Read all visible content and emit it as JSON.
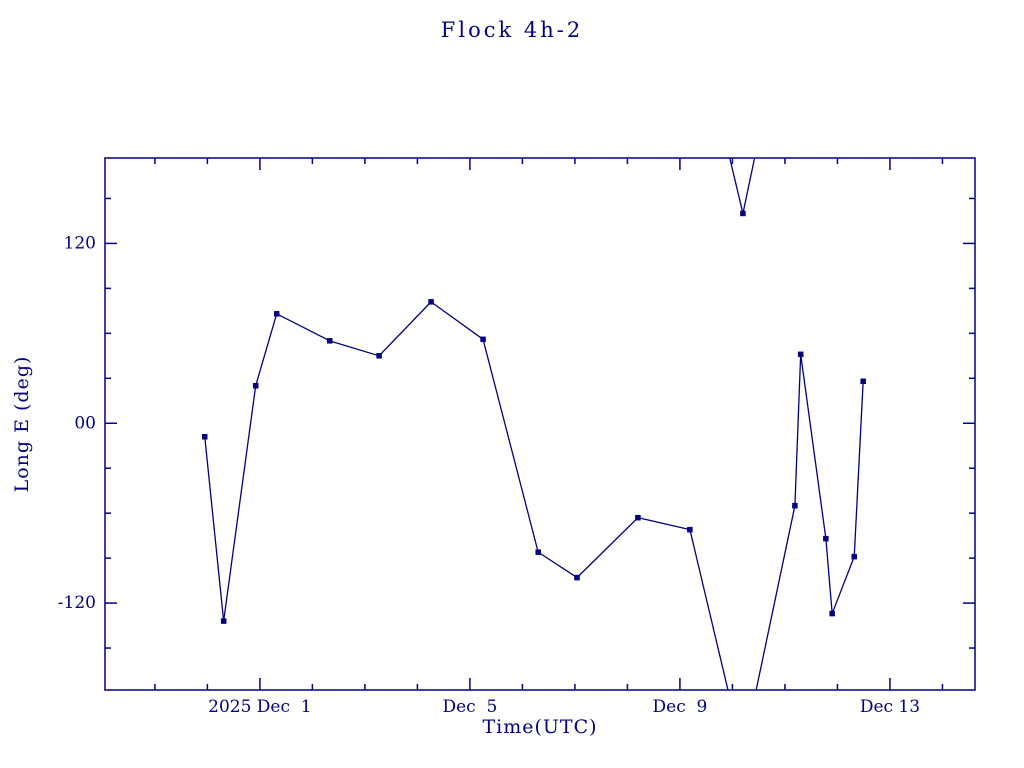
{
  "title": "Flock 4h-2",
  "colors": {
    "accent": "#000080",
    "background": "#ffffff"
  },
  "chart_data": {
    "type": "line",
    "title": "Flock 4h-2",
    "xlabel": "Time(UTC)",
    "ylabel": "Long E (deg)",
    "x_unit": "day of 2025 December (UTC), Dec 1 = 1",
    "xlim": [
      -1.95,
      14.62
    ],
    "ylim": [
      -178,
      177
    ],
    "wrap_degrees": 360,
    "line_color": "#000080",
    "marker": "square",
    "grid": false,
    "x_major_ticks": [
      {
        "t": 1,
        "label": "2025 Dec  1"
      },
      {
        "t": 5,
        "label": "Dec  5"
      },
      {
        "t": 9,
        "label": "Dec  9"
      },
      {
        "t": 13,
        "label": "Dec 13"
      }
    ],
    "x_minor_step": 1,
    "y_major_ticks": [
      {
        "v": 120,
        "label": "120"
      },
      {
        "v": 0,
        "label": "00"
      },
      {
        "v": -120,
        "label": "-120"
      }
    ],
    "y_minor_step": 30,
    "points": [
      {
        "t": -0.05,
        "v": -9
      },
      {
        "t": 0.31,
        "v": -132
      },
      {
        "t": 0.92,
        "v": 25
      },
      {
        "t": 1.32,
        "v": 73
      },
      {
        "t": 2.33,
        "v": 55
      },
      {
        "t": 3.27,
        "v": 45
      },
      {
        "t": 4.26,
        "v": 81
      },
      {
        "t": 5.25,
        "v": 56
      },
      {
        "t": 6.3,
        "v": -86
      },
      {
        "t": 7.04,
        "v": -103
      },
      {
        "t": 8.2,
        "v": -63
      },
      {
        "t": 9.19,
        "v": -71
      },
      {
        "t": 10.2,
        "v": 140
      },
      {
        "t": 11.19,
        "v": -55
      },
      {
        "t": 11.3,
        "v": 46
      },
      {
        "t": 11.78,
        "v": -77
      },
      {
        "t": 11.9,
        "v": -127
      },
      {
        "t": 12.32,
        "v": -89
      },
      {
        "t": 12.49,
        "v": 28
      }
    ]
  }
}
